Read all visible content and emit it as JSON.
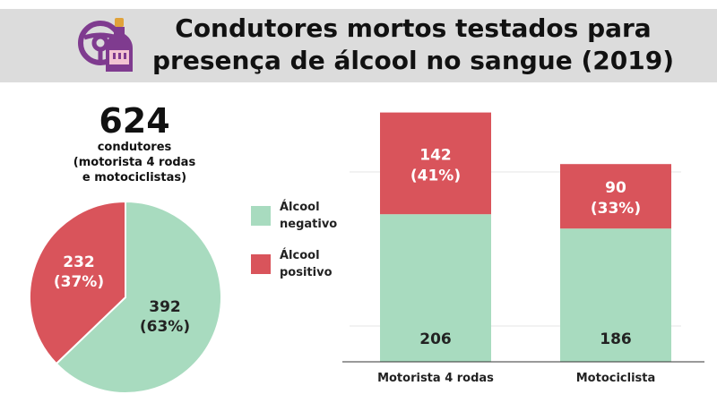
{
  "title": {
    "line1": "Condutores mortos testados para",
    "line2": "presença de álcool no sangue (2019)"
  },
  "icon": "steering-wheel-bottle-icon",
  "total": {
    "number": "624",
    "caption_line1": "condutores",
    "caption_line2": "(motorista 4 rodas",
    "caption_line3": "e motociclistas)"
  },
  "colors": {
    "negative": "#a8dbbf",
    "positive": "#d9545b",
    "header_bg": "#dcdcdc",
    "icon_purple": "#7f3b8f"
  },
  "legend": [
    {
      "label_line1": "Álcool",
      "label_line2": "negativo",
      "color": "#a8dbbf"
    },
    {
      "label_line1": "Álcool",
      "label_line2": "positivo",
      "color": "#d9545b"
    }
  ],
  "chart_data": [
    {
      "type": "pie",
      "slices": [
        {
          "name": "Álcool negativo",
          "value": 392,
          "label_value": "392",
          "label_pct": "(63%)"
        },
        {
          "name": "Álcool positivo",
          "value": 232,
          "label_value": "232",
          "label_pct": "(37%)"
        }
      ]
    },
    {
      "type": "bar",
      "stacked": true,
      "categories": [
        "Motorista 4 rodas",
        "Motociclista"
      ],
      "series": [
        {
          "name": "Álcool negativo",
          "values": [
            206,
            186
          ],
          "labels": [
            "206",
            "186"
          ]
        },
        {
          "name": "Álcool positivo",
          "values": [
            142,
            90
          ],
          "labels": [
            "142",
            "90"
          ],
          "pct_labels": [
            "(41%)",
            "(33%)"
          ]
        }
      ]
    }
  ]
}
